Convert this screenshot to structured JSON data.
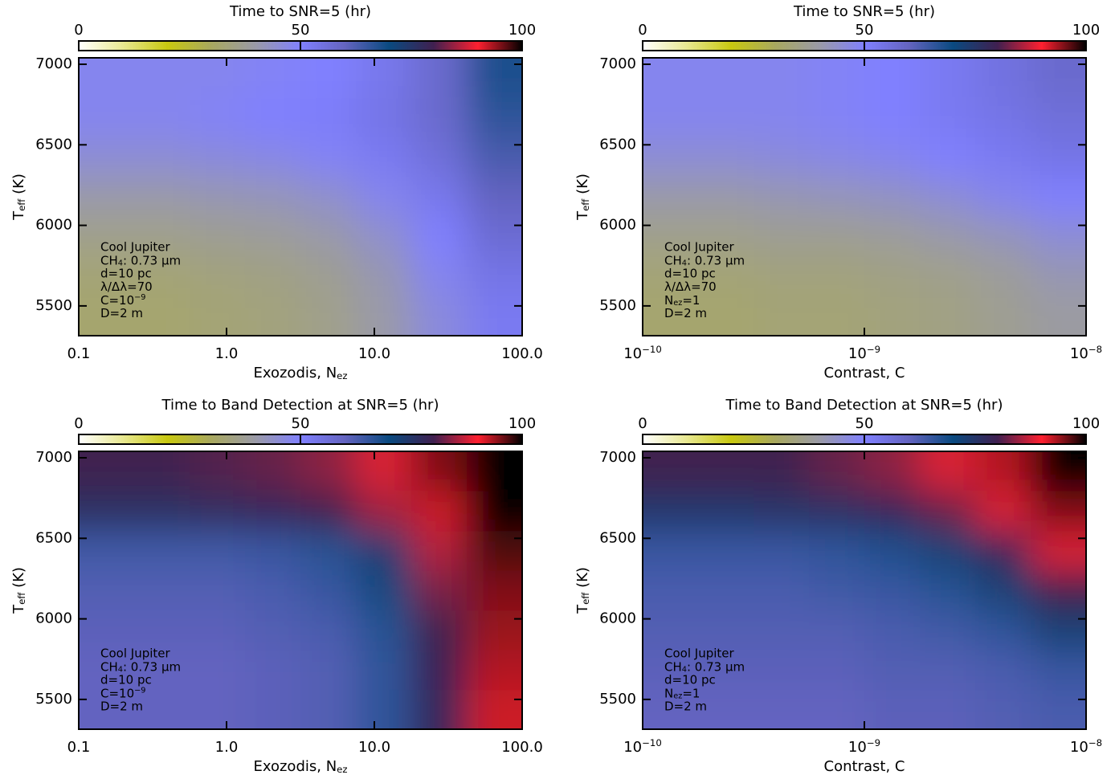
{
  "chart_data": [
    {
      "type": "heatmap",
      "title": "Time to SNR=5 (hr)",
      "colormap": [
        "#ffffff",
        "#e8e890",
        "#c8c810",
        "#a8a860",
        "#9a9aa8",
        "#8080ff",
        "#6464c0",
        "#0a4a80",
        "#402050",
        "#ff2030",
        "#000000"
      ],
      "clim": [
        0,
        100
      ],
      "cticks": [
        0,
        50,
        100
      ],
      "xlog": true,
      "xlim": [
        0.1,
        100
      ],
      "xticks": [
        0.1,
        {
          "value": 1,
          "label": "1.0"
        },
        {
          "value": 10,
          "label": "10.0"
        },
        {
          "value": 100,
          "label": "100.0"
        }
      ],
      "ylim": [
        5315,
        7040
      ],
      "yticks": [
        5500,
        6000,
        6500,
        7000
      ],
      "xlabel": [
        {
          "text": "Exozodis, N"
        },
        {
          "sub": "ez"
        }
      ],
      "ylabel": [
        {
          "text": "T"
        },
        {
          "sub": "eff"
        },
        {
          "text": " (K)"
        }
      ],
      "x": [
        0.154,
        0.365,
        0.866,
        2.05,
        4.87,
        11.5,
        27.4,
        64.9
      ],
      "y": [
        5438,
        5685,
        5931,
        6178,
        6424,
        6671,
        6917
      ],
      "z": [
        [
          32,
          32,
          33,
          34,
          36,
          40,
          46,
          52
        ],
        [
          33,
          33,
          34,
          35,
          37,
          41,
          48,
          54
        ],
        [
          36,
          36,
          37,
          38,
          40,
          44,
          50,
          57
        ],
        [
          40,
          40,
          41,
          42,
          44,
          48,
          53,
          60
        ],
        [
          45,
          45,
          46,
          47,
          49,
          52,
          56,
          63
        ],
        [
          48,
          48,
          49,
          50,
          51,
          54,
          58,
          66
        ],
        [
          48,
          48,
          48,
          49,
          50,
          53,
          58,
          68
        ]
      ],
      "annotation_color": "#000000",
      "annotation": [
        "Cool Jupiter",
        [
          {
            "text": "CH"
          },
          {
            "sub": "4"
          },
          {
            "text": ": 0.73 μm"
          }
        ],
        "d=10 pc",
        "λ/Δλ=70",
        [
          {
            "text": "C=10"
          },
          {
            "sup": "−9"
          }
        ],
        "D=2 m"
      ]
    },
    {
      "type": "heatmap",
      "title": "Time to SNR=5 (hr)",
      "colormap": [
        "#ffffff",
        "#e8e890",
        "#c8c810",
        "#a8a860",
        "#9a9aa8",
        "#8080ff",
        "#6464c0",
        "#0a4a80",
        "#402050",
        "#ff2030",
        "#000000"
      ],
      "clim": [
        0,
        100
      ],
      "cticks": [
        0,
        50,
        100
      ],
      "xlog": true,
      "xlim": [
        1e-10,
        1e-08
      ],
      "xticks": [
        {
          "value": 1e-10,
          "label": [
            {
              "text": "10"
            },
            {
              "sup": "−10"
            }
          ]
        },
        {
          "value": 1e-09,
          "label": [
            {
              "text": "10"
            },
            {
              "sup": "−9"
            }
          ]
        },
        {
          "value": 1e-08,
          "label": [
            {
              "text": "10"
            },
            {
              "sup": "−8"
            }
          ]
        }
      ],
      "ylim": [
        5315,
        7040
      ],
      "yticks": [
        5500,
        6000,
        6500,
        7000
      ],
      "xlabel": "Contrast, C",
      "ylabel": [
        {
          "text": "T"
        },
        {
          "sub": "eff"
        },
        {
          "text": " (K)"
        }
      ],
      "x": [
        1.33e-10,
        2.37e-10,
        4.22e-10,
        7.5e-10,
        1.33e-09,
        2.37e-09,
        4.22e-09,
        7.5e-09
      ],
      "y": [
        5438,
        5685,
        5931,
        6178,
        6424,
        6671,
        6917
      ],
      "z": [
        [
          32,
          32,
          33,
          33,
          34,
          35,
          37,
          39
        ],
        [
          33,
          33,
          34,
          34,
          35,
          36,
          38,
          41
        ],
        [
          36,
          36,
          37,
          37,
          38,
          40,
          42,
          45
        ],
        [
          40,
          40,
          41,
          42,
          43,
          45,
          48,
          50
        ],
        [
          45,
          45,
          46,
          47,
          48,
          50,
          52,
          54
        ],
        [
          48,
          48,
          48,
          49,
          50,
          52,
          54,
          56
        ],
        [
          48,
          48,
          48,
          49,
          50,
          52,
          55,
          58
        ]
      ],
      "annotation_color": "#000000",
      "annotation": [
        "Cool Jupiter",
        [
          {
            "text": "CH"
          },
          {
            "sub": "4"
          },
          {
            "text": ": 0.73 μm"
          }
        ],
        "d=10 pc",
        "λ/Δλ=70",
        [
          {
            "text": "N"
          },
          {
            "sub": "ez"
          },
          {
            "text": "=1"
          }
        ],
        "D=2 m"
      ]
    },
    {
      "type": "heatmap",
      "title": "Time to Band Detection at SNR=5 (hr)",
      "colormap": [
        "#ffffff",
        "#e8e890",
        "#c8c810",
        "#a8a860",
        "#9a9aa8",
        "#8080ff",
        "#6464c0",
        "#0a4a80",
        "#402050",
        "#ff2030",
        "#000000"
      ],
      "clim": [
        0,
        100
      ],
      "cticks": [
        0,
        50,
        100
      ],
      "xlog": true,
      "xlim": [
        0.1,
        100
      ],
      "xticks": [
        0.1,
        {
          "value": 1,
          "label": "1.0"
        },
        {
          "value": 10,
          "label": "10.0"
        },
        {
          "value": 100,
          "label": "100.0"
        }
      ],
      "ylim": [
        5315,
        7040
      ],
      "yticks": [
        5500,
        6000,
        6500,
        7000
      ],
      "xlabel": [
        {
          "text": "Exozodis, N"
        },
        {
          "sub": "ez"
        }
      ],
      "ylabel": [
        {
          "text": "T"
        },
        {
          "sub": "eff"
        },
        {
          "text": " (K)"
        }
      ],
      "x": [
        0.154,
        0.365,
        0.866,
        2.05,
        4.87,
        11.5,
        27.4,
        64.9
      ],
      "y": [
        5438,
        5685,
        5931,
        6178,
        6424,
        6671,
        6917
      ],
      "z": [
        [
          60,
          60,
          60,
          61,
          62,
          66,
          78,
          92
        ],
        [
          60,
          60,
          60,
          61,
          62,
          66,
          79,
          93
        ],
        [
          61,
          61,
          61,
          62,
          63,
          67,
          80,
          94
        ],
        [
          62,
          62,
          62,
          63,
          65,
          70,
          83,
          95
        ],
        [
          64,
          64,
          64,
          65,
          67,
          73,
          86,
          97
        ],
        [
          76,
          76,
          77,
          78,
          80,
          85,
          92,
          100
        ],
        [
          80,
          80,
          81,
          82,
          84,
          88,
          95,
          100
        ]
      ],
      "annotation_color": "#ffffff",
      "annotation": [
        "Cool Jupiter",
        [
          {
            "text": "CH"
          },
          {
            "sub": "4"
          },
          {
            "text": ": 0.73 μm"
          }
        ],
        "d=10 pc",
        [
          {
            "text": "C=10"
          },
          {
            "sup": "−9"
          }
        ],
        "D=2 m"
      ]
    },
    {
      "type": "heatmap",
      "title": "Time to Band Detection at SNR=5 (hr)",
      "colormap": [
        "#ffffff",
        "#e8e890",
        "#c8c810",
        "#a8a860",
        "#9a9aa8",
        "#8080ff",
        "#6464c0",
        "#0a4a80",
        "#402050",
        "#ff2030",
        "#000000"
      ],
      "clim": [
        0,
        100
      ],
      "cticks": [
        0,
        50,
        100
      ],
      "xlog": true,
      "xlim": [
        1e-10,
        1e-08
      ],
      "xticks": [
        {
          "value": 1e-10,
          "label": [
            {
              "text": "10"
            },
            {
              "sup": "−10"
            }
          ]
        },
        {
          "value": 1e-09,
          "label": [
            {
              "text": "10"
            },
            {
              "sup": "−9"
            }
          ]
        },
        {
          "value": 1e-08,
          "label": [
            {
              "text": "10"
            },
            {
              "sup": "−8"
            }
          ]
        }
      ],
      "ylim": [
        5315,
        7040
      ],
      "yticks": [
        5500,
        6000,
        6500,
        7000
      ],
      "xlabel": "Contrast, C",
      "ylabel": [
        {
          "text": "T"
        },
        {
          "sub": "eff"
        },
        {
          "text": " (K)"
        }
      ],
      "x": [
        1.33e-10,
        2.37e-10,
        4.22e-10,
        7.5e-10,
        1.33e-09,
        2.37e-09,
        4.22e-09,
        7.5e-09
      ],
      "y": [
        5438,
        5685,
        5931,
        6178,
        6424,
        6671,
        6917
      ],
      "z": [
        [
          60,
          60,
          60,
          60,
          61,
          61,
          62,
          63
        ],
        [
          61,
          61,
          61,
          61,
          62,
          62,
          63,
          65
        ],
        [
          62,
          62,
          62,
          62,
          63,
          64,
          66,
          72
        ],
        [
          63,
          63,
          63,
          64,
          65,
          67,
          72,
          80
        ],
        [
          65,
          65,
          65,
          66,
          68,
          72,
          78,
          88
        ],
        [
          74,
          74,
          75,
          76,
          78,
          82,
          88,
          95
        ],
        [
          80,
          80,
          80,
          82,
          84,
          88,
          93,
          100
        ]
      ],
      "annotation_color": "#ffffff",
      "annotation": [
        "Cool Jupiter",
        [
          {
            "text": "CH"
          },
          {
            "sub": "4"
          },
          {
            "text": ": 0.73 μm"
          }
        ],
        "d=10 pc",
        [
          {
            "text": "N"
          },
          {
            "sub": "ez"
          },
          {
            "text": "=1"
          }
        ],
        "D=2 m"
      ]
    }
  ]
}
